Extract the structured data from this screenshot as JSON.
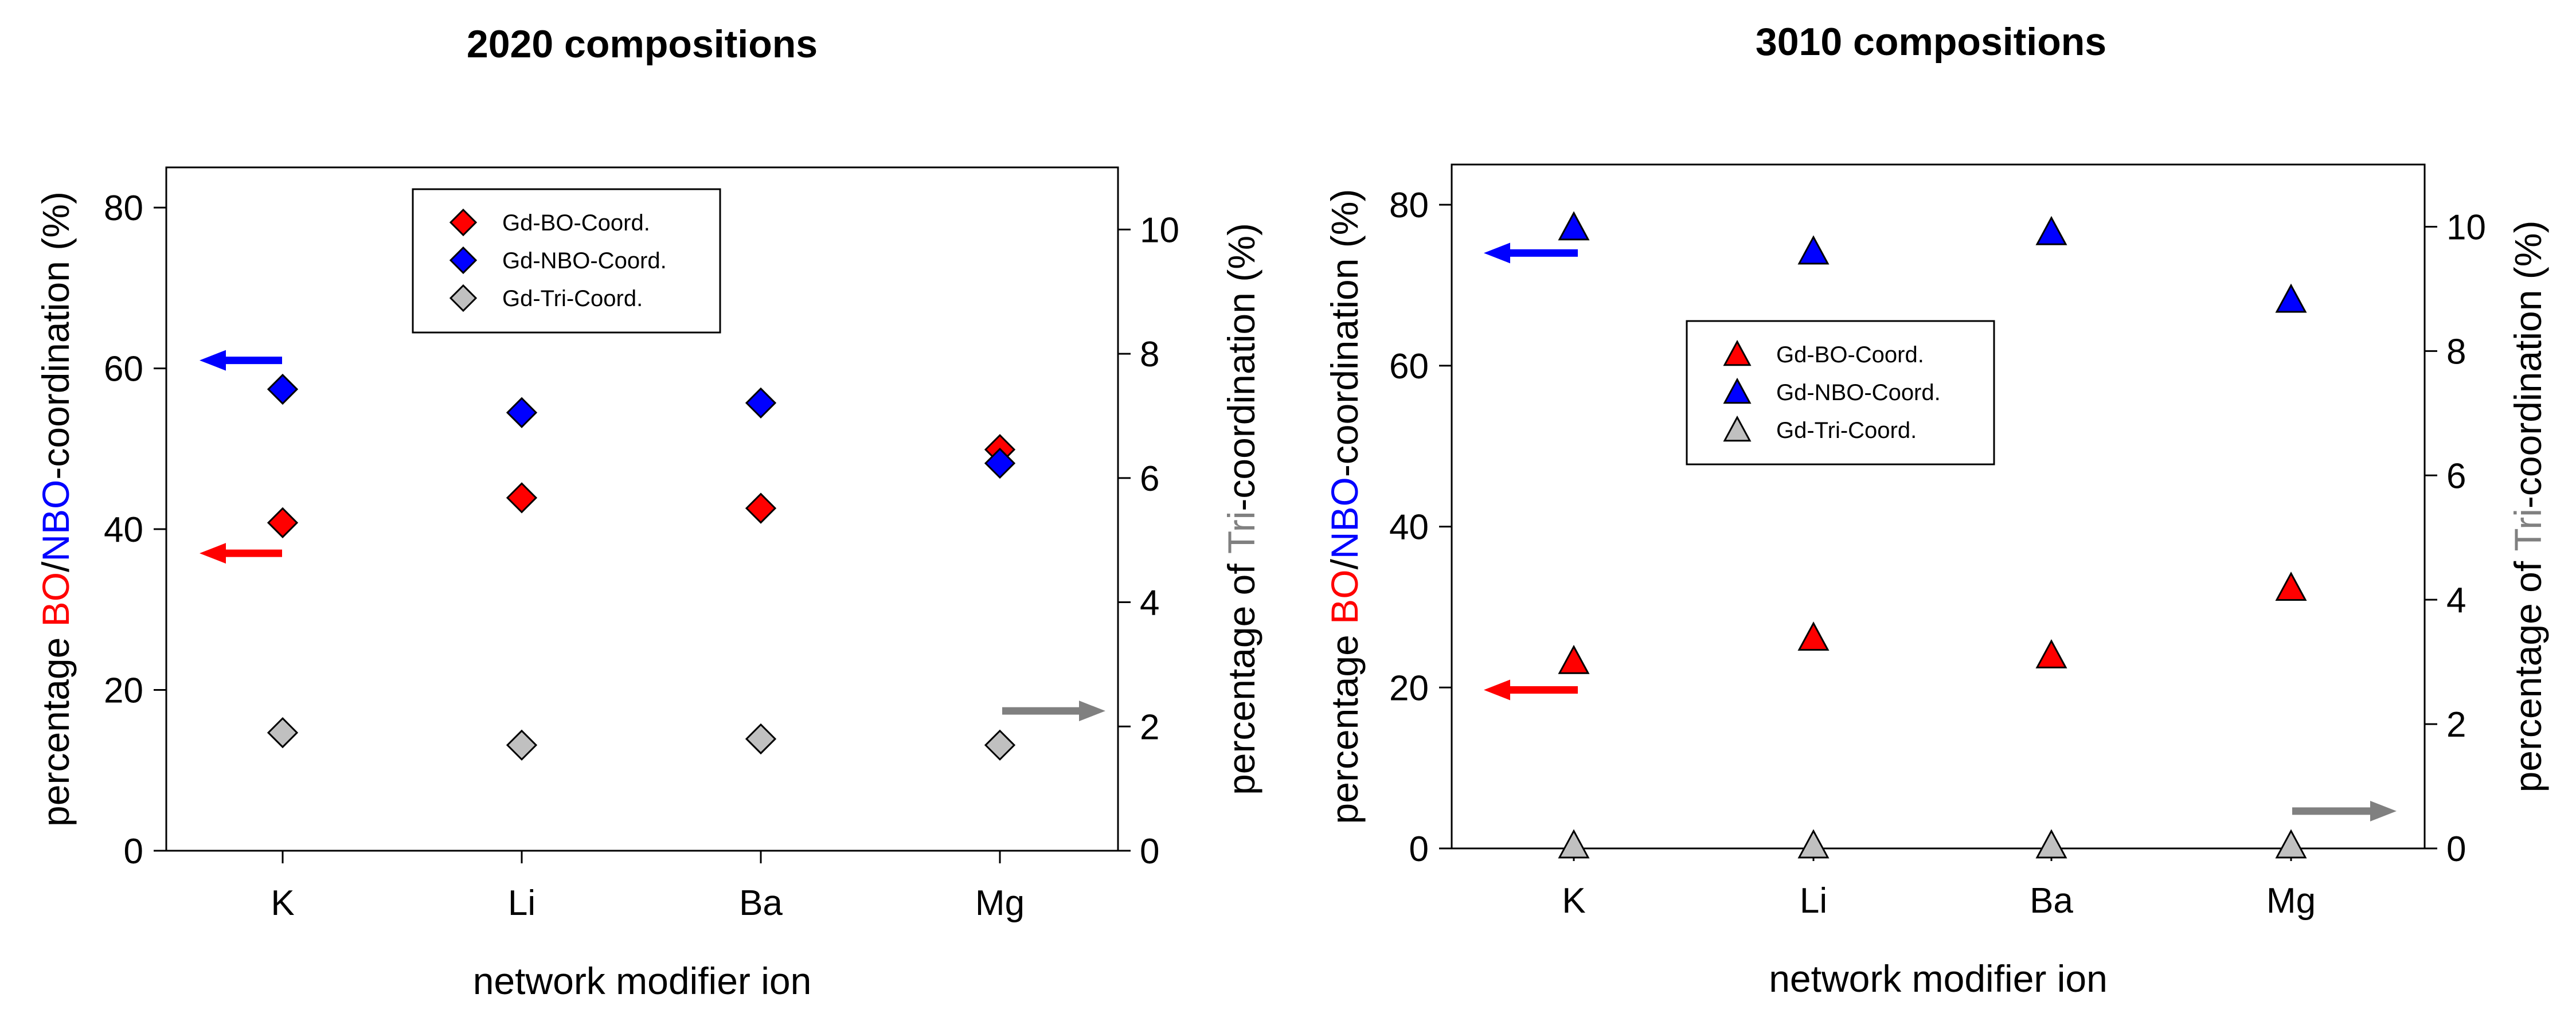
{
  "chart_data": [
    {
      "type": "scatter",
      "title": "2020 compositions",
      "marker": "diamond",
      "categories": [
        "K",
        "Li",
        "Ba",
        "Mg"
      ],
      "xlabel": "network modifier ion",
      "ylabel_parts": [
        "percentage ",
        "BO",
        "/",
        "NBO",
        "-coordination (%)"
      ],
      "y2label_parts": [
        "percentage of ",
        "Tri",
        "-coordination (%)"
      ],
      "ylim": [
        0,
        85
      ],
      "yticks": [
        0,
        20,
        40,
        60,
        80
      ],
      "y2lim": [
        0,
        11
      ],
      "y2ticks": [
        0,
        2,
        4,
        6,
        8,
        10
      ],
      "series": [
        {
          "name": "Gd-BO-Coord.",
          "axis": "left",
          "color": "#ff0000",
          "values": [
            40.8,
            43.9,
            42.6,
            49.9
          ]
        },
        {
          "name": "Gd-NBO-Coord.",
          "axis": "left",
          "color": "#0000ff",
          "values": [
            57.4,
            54.5,
            55.7,
            48.2
          ]
        },
        {
          "name": "Gd-Tri-Coord.",
          "axis": "right",
          "color": "#c0c0c0",
          "values": [
            1.9,
            1.7,
            1.8,
            1.7
          ]
        }
      ],
      "reference_arrows": [
        {
          "series": "Gd-NBO-Coord.",
          "axis": "left",
          "value": 61,
          "side": "left",
          "color": "#0000ff"
        },
        {
          "series": "Gd-BO-Coord.",
          "axis": "left",
          "value": 37,
          "side": "left",
          "color": "#ff0000"
        },
        {
          "series": "Gd-Tri-Coord.",
          "axis": "right",
          "value": 2.25,
          "side": "right",
          "color": "#808080"
        }
      ],
      "legend_position": "top-center"
    },
    {
      "type": "scatter",
      "title": "3010 compositions",
      "marker": "triangle",
      "categories": [
        "K",
        "Li",
        "Ba",
        "Mg"
      ],
      "xlabel": "network modifier ion",
      "ylabel_parts": [
        "percentage ",
        "BO",
        "/",
        "NBO",
        "-coordination (%)"
      ],
      "y2label_parts": [
        "percentage of ",
        "Tri",
        "-coordination (%)"
      ],
      "ylim": [
        0,
        85
      ],
      "yticks": [
        0,
        20,
        40,
        60,
        80
      ],
      "y2lim": [
        0,
        11
      ],
      "y2ticks": [
        0,
        2,
        4,
        6,
        8,
        10
      ],
      "series": [
        {
          "name": "Gd-BO-Coord.",
          "axis": "left",
          "color": "#ff0000",
          "values": [
            23.3,
            26.2,
            24.0,
            32.4
          ]
        },
        {
          "name": "Gd-NBO-Coord.",
          "axis": "left",
          "color": "#0000ff",
          "values": [
            77.2,
            74.2,
            76.6,
            68.2
          ]
        },
        {
          "name": "Gd-Tri-Coord.",
          "axis": "right",
          "color": "#c0c0c0",
          "values": [
            0.05,
            0.05,
            0.05,
            0.05
          ]
        }
      ],
      "reference_arrows": [
        {
          "series": "Gd-NBO-Coord.",
          "axis": "left",
          "value": 74,
          "side": "left",
          "color": "#0000ff"
        },
        {
          "series": "Gd-BO-Coord.",
          "axis": "left",
          "value": 19.7,
          "side": "left",
          "color": "#ff0000"
        },
        {
          "series": "Gd-Tri-Coord.",
          "axis": "right",
          "value": 0.6,
          "side": "right",
          "color": "#808080"
        }
      ],
      "legend_position": "center-left"
    }
  ],
  "colors": {
    "bo": "#ff0000",
    "nbo": "#0000ff",
    "tri_label": "#808080",
    "tri_marker": "#c0c0c0",
    "axis": "#000000"
  }
}
